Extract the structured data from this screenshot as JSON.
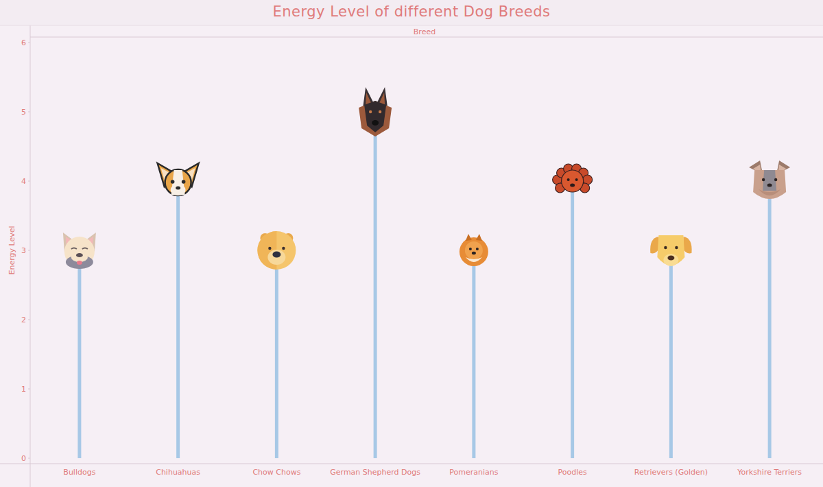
{
  "chart_data": {
    "type": "lollipop",
    "title": "Energy Level of different Dog Breeds",
    "x_label": "Breed",
    "y_label": "Energy Level",
    "categories": [
      "Bulldogs",
      "Chihuahuas",
      "Chow Chows",
      "German Shepherd Dogs",
      "Pomeranians",
      "Poodles",
      "Retrievers (Golden)",
      "Yorkshire Terriers"
    ],
    "values": [
      3,
      4,
      3,
      5,
      3,
      4,
      3,
      4
    ],
    "color": "#a7c8e6",
    "ylim": [
      0,
      6
    ],
    "yticks": [
      0,
      1,
      2,
      3,
      4,
      5,
      6
    ],
    "grid": false
  }
}
